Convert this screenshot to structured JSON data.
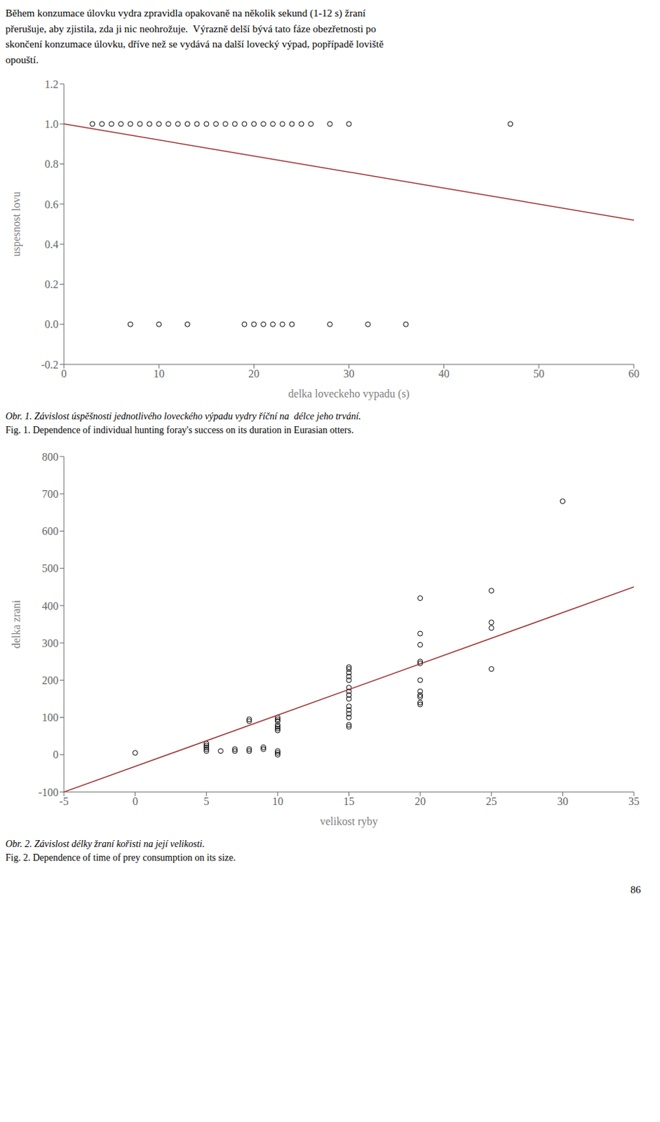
{
  "annotations": [
    "Během konzumace úlovku vydra zpravidla opakovaně na několik sekund (1-12 s) žraní\npřerušuje, aby zjistila, zda ji nic neohrožuje.  Výrazně delší bývá tato fáze obezřetnosti po\nskončení konzumace úlovku, dříve než se vydává na další lovecký výpad, popřípadě loviště\nopouští.",
    "86"
  ],
  "chart_data": [
    {
      "type": "scatter",
      "xlabel": "delka loveckeho vypadu (s)",
      "ylabel": "uspesnost lovu",
      "xlim": [
        0,
        60
      ],
      "ylim": [
        -0.2,
        1.2
      ],
      "xticks": [
        0,
        10,
        20,
        30,
        40,
        50,
        60
      ],
      "yticks": [
        -0.2,
        {
          "value": 0.0,
          "label": "0.0"
        },
        0.2,
        0.4,
        0.6,
        0.8,
        {
          "value": 1.0,
          "label": "1.0"
        },
        1.2
      ],
      "grid": false,
      "series": [
        {
          "type": "scatter",
          "marker": "circle",
          "color": "black",
          "x": [
            3,
            4,
            5,
            6,
            7,
            8,
            9,
            10,
            11,
            12,
            13,
            14,
            15,
            16,
            17,
            18,
            19,
            20,
            21,
            22,
            23,
            24,
            25,
            26,
            28,
            30,
            47
          ],
          "values": [
            1.0,
            1.0,
            1.0,
            1.0,
            1.0,
            1.0,
            1.0,
            1.0,
            1.0,
            1.0,
            1.0,
            1.0,
            1.0,
            1.0,
            1.0,
            1.0,
            1.0,
            1.0,
            1.0,
            1.0,
            1.0,
            1.0,
            1.0,
            1.0,
            1.0,
            1.0,
            1.0
          ]
        },
        {
          "type": "scatter",
          "marker": "circle",
          "color": "black",
          "x": [
            7,
            10,
            13,
            19,
            20,
            21,
            22,
            23,
            24,
            28,
            32,
            36
          ],
          "values": [
            0.0,
            0.0,
            0.0,
            0.0,
            0.0,
            0.0,
            0.0,
            0.0,
            0.0,
            0.0,
            0.0,
            0.0
          ]
        },
        {
          "type": "line",
          "line_style": "solid",
          "color": "#a03030",
          "x": [
            0,
            60
          ],
          "values": [
            1.0,
            0.52
          ]
        }
      ],
      "annotations": [
        "Obr. 1. Závislost úspěšnosti jednotlivého loveckého výpadu vydry říční na  délce jeho trvání.",
        "Fig. 1. Dependence of individual hunting foray's success on its duration in Eurasian otters."
      ]
    },
    {
      "type": "scatter",
      "xlabel": "velikost ryby",
      "ylabel": "delka zrani",
      "xlim": [
        -5,
        35
      ],
      "ylim": [
        -100,
        800
      ],
      "xticks": [
        -5,
        0,
        5,
        10,
        15,
        20,
        25,
        30,
        35
      ],
      "yticks": [
        -100,
        0,
        100,
        200,
        300,
        400,
        500,
        600,
        700,
        800
      ],
      "grid": false,
      "series": [
        {
          "type": "scatter",
          "marker": "circle",
          "color": "black",
          "x": [
            0,
            5,
            5,
            5,
            5,
            5,
            6,
            7,
            7,
            8,
            8,
            8,
            8,
            9,
            9,
            10,
            10,
            10,
            10,
            10,
            10,
            10,
            10,
            10,
            10,
            15,
            15,
            15,
            15,
            15,
            15,
            15,
            15,
            15,
            15,
            15,
            15,
            15,
            15,
            15,
            20,
            20,
            20,
            20,
            20,
            20,
            20,
            20,
            20,
            20,
            20,
            25,
            25,
            25,
            25,
            30
          ],
          "values": [
            5,
            10,
            15,
            20,
            25,
            30,
            10,
            15,
            10,
            90,
            95,
            10,
            15,
            20,
            15,
            80,
            90,
            95,
            75,
            70,
            65,
            10,
            5,
            0,
            100,
            75,
            80,
            100,
            110,
            120,
            130,
            150,
            160,
            170,
            180,
            200,
            210,
            220,
            230,
            235,
            140,
            160,
            200,
            245,
            250,
            295,
            325,
            135,
            155,
            170,
            420,
            230,
            340,
            355,
            440,
            680
          ]
        },
        {
          "type": "line",
          "line_style": "solid",
          "color": "#a03030",
          "x": [
            -5,
            35
          ],
          "values": [
            -100,
            450
          ]
        }
      ],
      "annotations": [
        "Obr. 2. Závislost délky žraní kořisti na její velikosti.",
        "Fig. 2. Dependence of time of prey consumption on its size."
      ]
    }
  ]
}
